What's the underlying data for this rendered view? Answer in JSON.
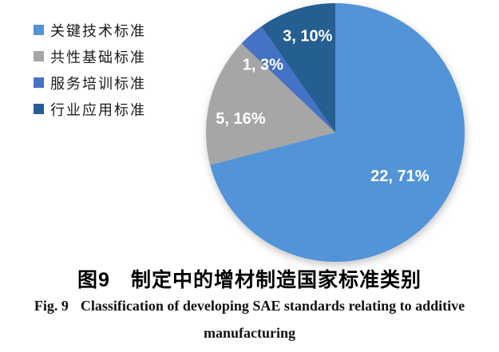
{
  "figure": {
    "caption_cn": "图9　制定中的增材制造国家标准类别",
    "caption_en": {
      "fig_label": "Fig. 9",
      "line1": "Classification of developing SAE standards relating to additive",
      "line2": "manufacturing"
    }
  },
  "chart_data": {
    "type": "pie",
    "title": "制定中的增材制造国家标准类别",
    "legend_position": "left",
    "start_angle_deg": 0,
    "direction": "clockwise",
    "total": 31,
    "data_label_format": "value, percent",
    "data_label_color": "#FFFFFF",
    "series": [
      {
        "name": "关键技术标准",
        "value": 22,
        "percent": 71,
        "label": "22, 71%",
        "color": "#5294D7"
      },
      {
        "name": "共性基础标准",
        "value": 5,
        "percent": 16,
        "label": "5, 16%",
        "color": "#A6A6A6"
      },
      {
        "name": "服务培训标准",
        "value": 1,
        "percent": 3,
        "label": "1, 3%",
        "color": "#4472C4"
      },
      {
        "name": "行业应用标准",
        "value": 3,
        "percent": 10,
        "label": "3, 10%",
        "color": "#255E91"
      }
    ]
  }
}
